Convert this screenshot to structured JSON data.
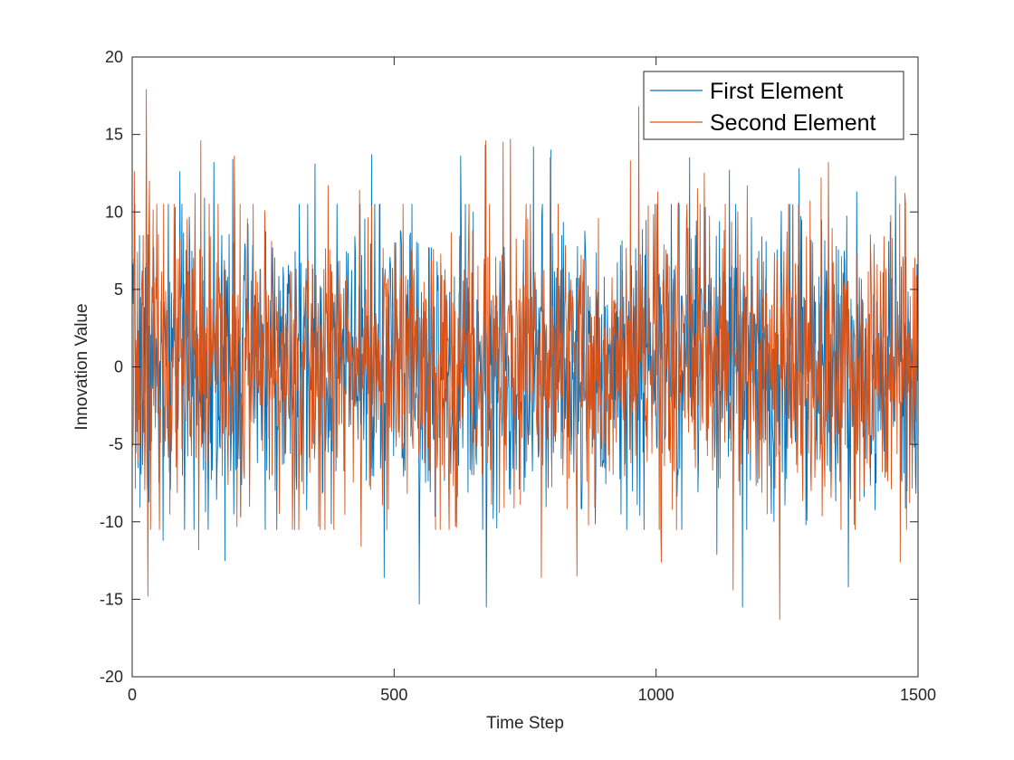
{
  "chart_data": {
    "type": "line",
    "title": "",
    "xlabel": "Time Step",
    "ylabel": "Innovation Value",
    "xlim": [
      0,
      1500
    ],
    "ylim": [
      -20,
      20
    ],
    "xticks": [
      0,
      500,
      1000,
      1500
    ],
    "yticks": [
      -20,
      -15,
      -10,
      -5,
      0,
      5,
      10,
      15,
      20
    ],
    "grid": false,
    "legend_position": "top-right",
    "n_points": 1500,
    "series": [
      {
        "name": "First Element",
        "color": "#0072BD",
        "std": 4.6,
        "seed": 7,
        "peaks": [
          [
            58,
            -11.2
          ],
          [
            81,
            10.3
          ],
          [
            90,
            12.6
          ],
          [
            137,
            10.9
          ],
          [
            155,
            13.2
          ],
          [
            176,
            -12.5
          ],
          [
            191,
            13.4
          ],
          [
            348,
            13.1
          ],
          [
            456,
            13.7
          ],
          [
            480,
            -13.6
          ],
          [
            547,
            -15.3
          ],
          [
            626,
            13.6
          ],
          [
            673,
            14.3
          ],
          [
            675,
            -15.5
          ],
          [
            765,
            14.2
          ],
          [
            798,
            14.0
          ],
          [
            1063,
            13.5
          ],
          [
            1115,
            -12.1
          ],
          [
            1139,
            12.7
          ],
          [
            1164,
            -15.5
          ],
          [
            1272,
            12.8
          ],
          [
            1366,
            -14.2
          ],
          [
            1382,
            11.3
          ],
          [
            1456,
            12.3
          ]
        ]
      },
      {
        "name": "Second Element",
        "color": "#D95319",
        "std": 4.6,
        "seed": 23,
        "peaks": [
          [
            3,
            12.6
          ],
          [
            20,
            8.5
          ],
          [
            26,
            17.9
          ],
          [
            29,
            -14.8
          ],
          [
            32,
            12.0
          ],
          [
            119,
            11.2
          ],
          [
            126,
            -11.8
          ],
          [
            130,
            14.6
          ],
          [
            194,
            13.6
          ],
          [
            373,
            11.7
          ],
          [
            433,
            11.4
          ],
          [
            436,
            -11.6
          ],
          [
            674,
            14.6
          ],
          [
            707,
            14.5
          ],
          [
            721,
            14.7
          ],
          [
            780,
            -13.6
          ],
          [
            797,
            13.5
          ],
          [
            848,
            -13.5
          ],
          [
            950,
            13.3
          ],
          [
            966,
            16.8
          ],
          [
            984,
            10.4
          ],
          [
            1002,
            11.3
          ],
          [
            1009,
            -12.6
          ],
          [
            1042,
            10.6
          ],
          [
            1078,
            11.5
          ],
          [
            1091,
            12.5
          ],
          [
            1146,
            -14.4
          ],
          [
            1173,
            11.7
          ],
          [
            1235,
            -16.3
          ],
          [
            1293,
            10.7
          ],
          [
            1314,
            12.2
          ],
          [
            1328,
            13.2
          ],
          [
            1465,
            -12.6
          ],
          [
            1474,
            11.2
          ]
        ]
      }
    ]
  }
}
